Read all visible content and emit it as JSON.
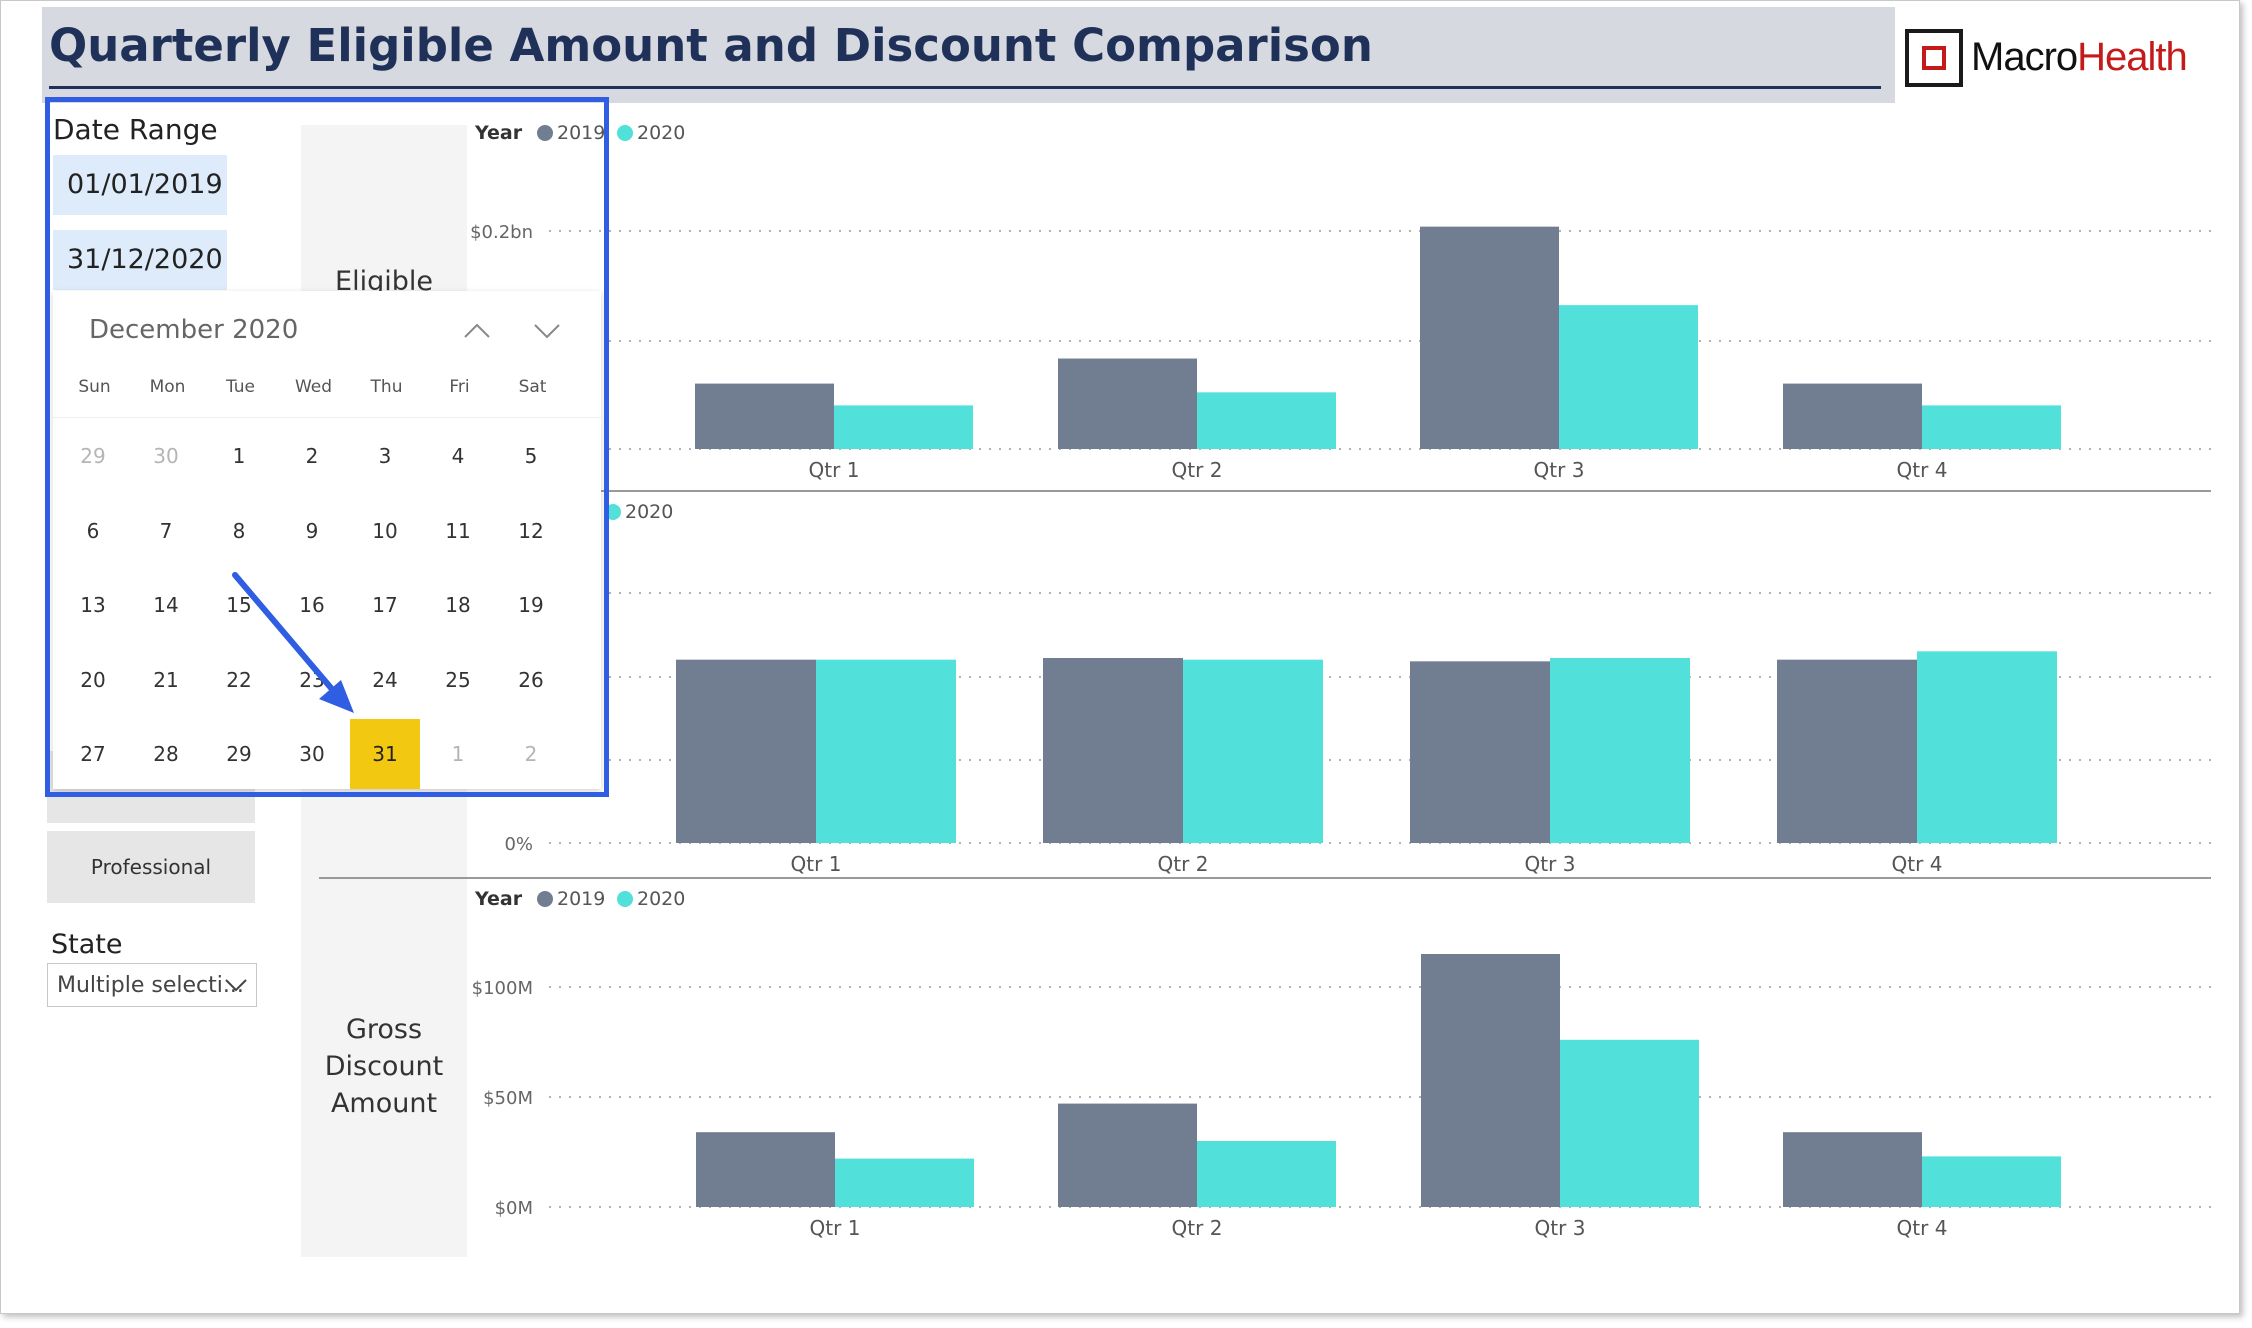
{
  "title": "Quarterly Eligible Amount and Discount Comparison",
  "logo": {
    "part1": "Macro",
    "part2": "Health"
  },
  "colors": {
    "series_2019": "#717d91",
    "series_2020": "#52e0da",
    "title": "#1f3158",
    "selection": "#f2c811",
    "annotation": "#2f5ee2"
  },
  "filters": {
    "date_range_label": "Date Range",
    "start_date": "01/01/2019",
    "end_date": "31/12/2020",
    "professional_button": "Professional",
    "state_label": "State",
    "state_value": "Multiple selecti..."
  },
  "calendar": {
    "month_label": "December 2020",
    "weekdays": [
      "Sun",
      "Mon",
      "Tue",
      "Wed",
      "Thu",
      "Fri",
      "Sat"
    ],
    "days": [
      {
        "label": "29",
        "out": true
      },
      {
        "label": "30",
        "out": true
      },
      {
        "label": "1"
      },
      {
        "label": "2"
      },
      {
        "label": "3"
      },
      {
        "label": "4"
      },
      {
        "label": "5"
      },
      {
        "label": "6"
      },
      {
        "label": "7"
      },
      {
        "label": "8"
      },
      {
        "label": "9"
      },
      {
        "label": "10"
      },
      {
        "label": "11"
      },
      {
        "label": "12"
      },
      {
        "label": "13"
      },
      {
        "label": "14"
      },
      {
        "label": "15"
      },
      {
        "label": "16"
      },
      {
        "label": "17"
      },
      {
        "label": "18"
      },
      {
        "label": "19"
      },
      {
        "label": "20"
      },
      {
        "label": "21"
      },
      {
        "label": "22"
      },
      {
        "label": "23"
      },
      {
        "label": "24"
      },
      {
        "label": "25"
      },
      {
        "label": "26"
      },
      {
        "label": "27"
      },
      {
        "label": "28"
      },
      {
        "label": "29"
      },
      {
        "label": "30"
      },
      {
        "label": "31",
        "selected": true
      },
      {
        "label": "1",
        "out": true
      },
      {
        "label": "2",
        "out": true
      }
    ],
    "prev_icon": "chevron-up-icon",
    "next_icon": "chevron-down-icon"
  },
  "panels": {
    "eligible_label": "Eligible",
    "gross_discount_label": "Gross Discount Amount"
  },
  "chart_data": [
    {
      "type": "bar",
      "legend_title": "Year",
      "categories": [
        "Qtr 1",
        "Qtr 2",
        "Qtr 3",
        "Qtr 4"
      ],
      "series": [
        {
          "name": "2019",
          "values": [
            0.06,
            0.083,
            0.204,
            0.06
          ]
        },
        {
          "name": "2020",
          "values": [
            0.04,
            0.052,
            0.132,
            0.04
          ]
        }
      ],
      "ylim": [
        0,
        0.2
      ],
      "ytick_labels": [
        "$0.2bn"
      ],
      "grid": true
    },
    {
      "type": "bar",
      "legend_title": "",
      "legend_visible_names": [
        "2020"
      ],
      "categories": [
        "Qtr 1",
        "Qtr 2",
        "Qtr 3",
        "Qtr 4"
      ],
      "series": [
        {
          "name": "2019",
          "values": [
            0.55,
            0.555,
            0.545,
            0.55
          ]
        },
        {
          "name": "2020",
          "values": [
            0.55,
            0.55,
            0.555,
            0.575
          ]
        }
      ],
      "ylim": [
        0,
        0.75
      ],
      "ytick_labels": [
        "0%"
      ],
      "grid": true
    },
    {
      "type": "bar",
      "legend_title": "Year",
      "categories": [
        "Qtr 1",
        "Qtr 2",
        "Qtr 3",
        "Qtr 4"
      ],
      "series": [
        {
          "name": "2019",
          "values": [
            34,
            47,
            115,
            34
          ]
        },
        {
          "name": "2020",
          "values": [
            22,
            30,
            76,
            23
          ]
        }
      ],
      "ylim": [
        0,
        100
      ],
      "ytick_labels": [
        "$100M",
        "$50M",
        "$0M"
      ],
      "ytick_values": [
        100,
        50,
        0
      ],
      "grid": true
    }
  ]
}
